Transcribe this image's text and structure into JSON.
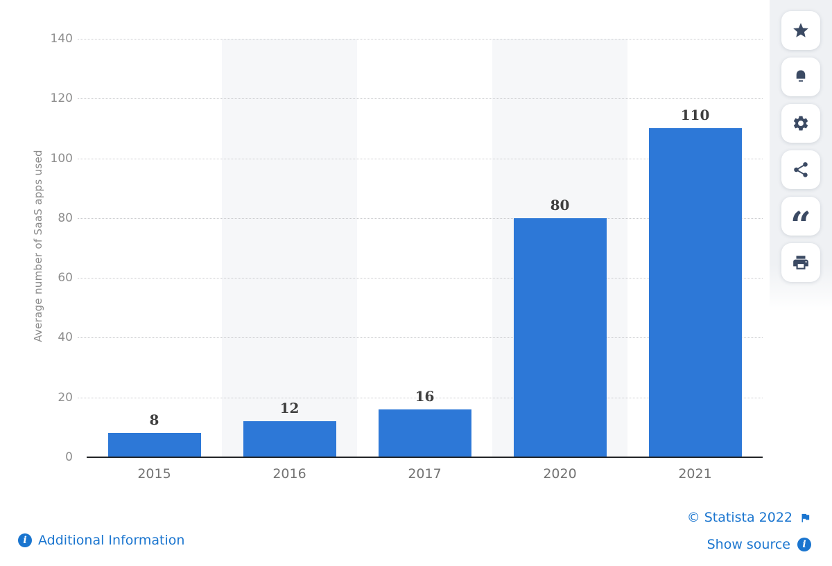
{
  "chart_data": {
    "type": "bar",
    "categories": [
      "2015",
      "2016",
      "2017",
      "2020",
      "2021"
    ],
    "values": [
      8,
      12,
      16,
      80,
      110
    ],
    "title": "",
    "xlabel": "",
    "ylabel": "Average number of SaaS apps used",
    "ylim": [
      0,
      140
    ],
    "yticks": [
      0,
      20,
      40,
      60,
      80,
      100,
      120,
      140
    ],
    "grid": "dotted-horizontal",
    "legend": "none",
    "band_columns": [
      1,
      3
    ]
  },
  "toolbar": {
    "buttons": [
      {
        "name": "favorite-button",
        "icon": "star-icon"
      },
      {
        "name": "alerts-button",
        "icon": "bell-icon"
      },
      {
        "name": "settings-button",
        "icon": "gear-icon"
      },
      {
        "name": "share-button",
        "icon": "share-icon"
      },
      {
        "name": "cite-button",
        "icon": "quote-icon"
      },
      {
        "name": "print-button",
        "icon": "print-icon"
      }
    ]
  },
  "footer": {
    "additional_info_label": "Additional Information",
    "copyright_label": "© Statista 2022",
    "show_source_label": "Show source",
    "info_glyph": "i"
  },
  "colors": {
    "bar": "#2d78d7",
    "band": "#f6f7f9",
    "link": "#1a75cf",
    "toolbar_icon": "#3b4a63",
    "axis_line": "#222426",
    "tick_text": "#8e8e8e",
    "value_text": "#3e3e3e"
  }
}
